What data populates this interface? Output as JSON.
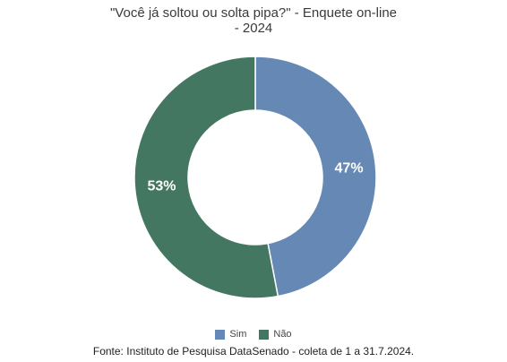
{
  "chart_data": {
    "type": "pie",
    "title_lines": [
      "\"Você já soltou ou solta pipa?\" - Enquete on-line",
      "- 2024"
    ],
    "categories": [
      "Sim",
      "Não"
    ],
    "values": [
      47,
      53
    ],
    "value_labels": [
      "47%",
      "53%"
    ],
    "colors": [
      "#6589b4",
      "#437761"
    ],
    "donut": true,
    "start_angle_deg": 0,
    "direction": "clockwise",
    "legend_position": "bottom",
    "source": "Fonte: Instituto de Pesquisa DataSenado - coleta de 1 a 31.7.2024."
  }
}
